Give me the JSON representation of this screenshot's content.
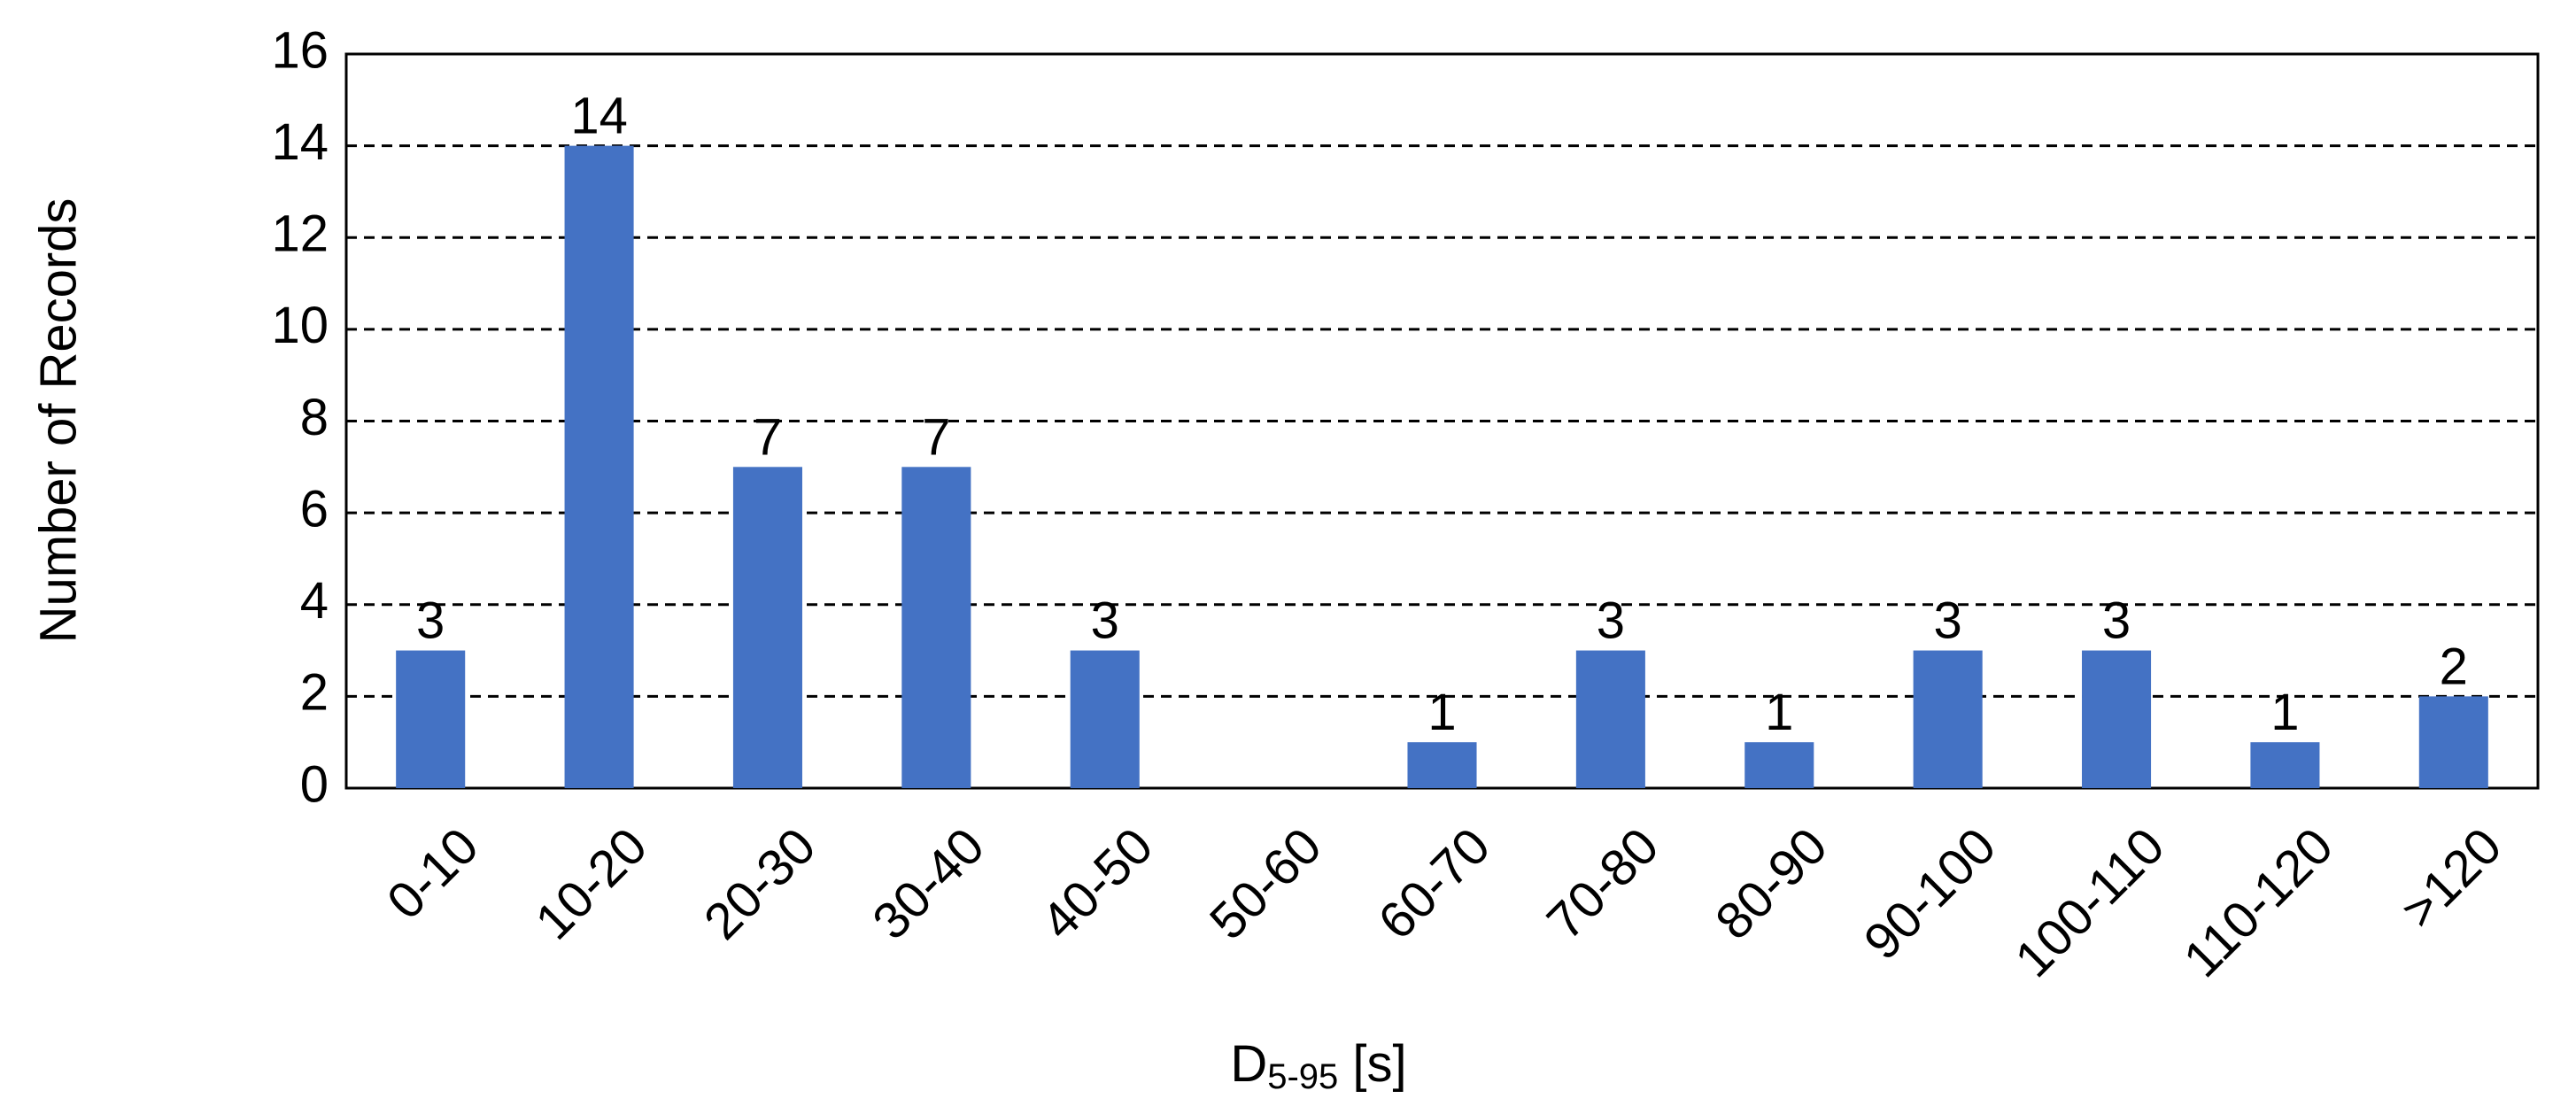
{
  "chart_data": {
    "type": "bar",
    "categories": [
      "0-10",
      "10-20",
      "20-30",
      "30-40",
      "40-50",
      "50-60",
      "60-70",
      "70-80",
      "80-90",
      "90-100",
      "100-110",
      "110-120",
      ">120"
    ],
    "values": [
      3,
      14,
      7,
      7,
      3,
      0,
      1,
      3,
      1,
      3,
      3,
      1,
      2
    ],
    "color": "#4472c4",
    "ylabel": "Number of Records",
    "xlabel": {
      "main": "D",
      "subscript": "5-95",
      "suffix": " [s]"
    },
    "ylim": [
      0,
      16
    ],
    "yticks": [
      0,
      2,
      4,
      6,
      8,
      10,
      12,
      14,
      16
    ],
    "grid": true,
    "data_labels": true
  }
}
